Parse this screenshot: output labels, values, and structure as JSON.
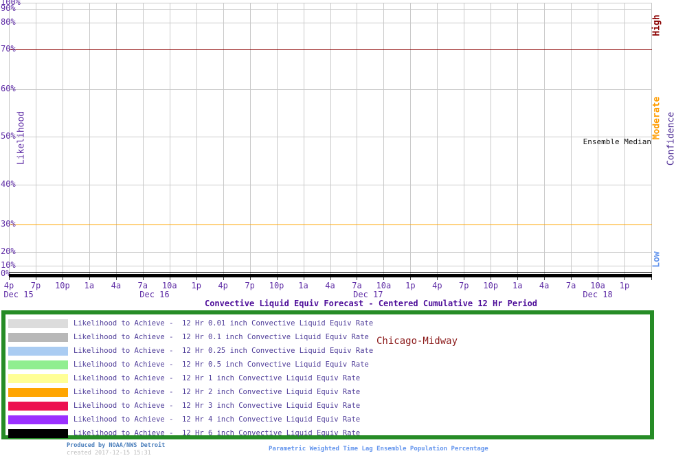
{
  "chart_data": {
    "type": "line",
    "title": "Convective Liquid Equiv Forecast - Centered Cumulative 12 Hr Period",
    "location": "Chicago-Midway",
    "ylabel": "Likelihood",
    "annotation": "Ensemble Median",
    "y_axis": {
      "unit": "%",
      "scale": "cumulative-normal-probability",
      "ticks": [
        100,
        90,
        80,
        70,
        60,
        50,
        40,
        30,
        20,
        10,
        0
      ],
      "ylim": [
        0,
        100
      ],
      "grid": true
    },
    "x_axis": {
      "tick_interval_hours": 3,
      "tick_labels": [
        "4p",
        "7p",
        "10p",
        "1a",
        "4a",
        "7a",
        "10a",
        "1p",
        "4p",
        "7p",
        "10p",
        "1a",
        "4a",
        "7a",
        "10a",
        "1p",
        "4p",
        "7p",
        "10p",
        "1a",
        "4a",
        "7a",
        "10a",
        "1p"
      ],
      "date_labels": [
        {
          "text": "Dec 15",
          "tick_pos": 0.36
        },
        {
          "text": "Dec 16",
          "tick_pos": 5.44
        },
        {
          "text": "Dec 17",
          "tick_pos": 13.42
        },
        {
          "text": "Dec 18",
          "tick_pos": 22.0
        }
      ],
      "grid": true
    },
    "reference_lines": [
      {
        "percent": 70,
        "color": "#8b0000",
        "meaning": "High confidence threshold"
      },
      {
        "percent": 30,
        "color": "#ffa500",
        "meaning": "Moderate confidence threshold"
      }
    ],
    "confidence_axis": {
      "label": "Confidence",
      "label_color": "#4f2e96",
      "bands": [
        {
          "text": "High",
          "color": "#8b0000"
        },
        {
          "text": "Moderate",
          "color": "#ff9c00"
        },
        {
          "text": "Low",
          "color": "#6495ed"
        }
      ]
    },
    "series": [
      {
        "name": "12 Hr 0.01 inch Convective Liquid Equiv Rate",
        "color": "#dcdcdc",
        "constant_value_percent": 0
      },
      {
        "name": "12 Hr 0.1 inch Convective Liquid Equiv Rate",
        "color": "#b8b8b8",
        "constant_value_percent": 0
      },
      {
        "name": "12 Hr 0.25 inch Convective Liquid Equiv Rate",
        "color": "#aaccf2",
        "constant_value_percent": 0
      },
      {
        "name": "12 Hr 0.5 inch Convective Liquid Equiv Rate",
        "color": "#90ee90",
        "constant_value_percent": 0
      },
      {
        "name": "12 Hr 1 inch Convective Liquid Equiv Rate",
        "color": "#ffff96",
        "constant_value_percent": 0
      },
      {
        "name": "12 Hr 2 inch Convective Liquid Equiv Rate",
        "color": "#ffa500",
        "constant_value_percent": 0
      },
      {
        "name": "12 Hr 3 inch Convective Liquid Equiv Rate",
        "color": "#ec1050",
        "constant_value_percent": 0
      },
      {
        "name": "12 Hr 4 inch Convective Liquid Equiv Rate",
        "color": "#9b30ff",
        "constant_value_percent": 0
      },
      {
        "name": "12 Hr 6 inch Convective Liquid Equiv Rate",
        "color": "#000000",
        "constant_value_percent": 0
      }
    ],
    "legend_position": "bottom-box"
  },
  "legend": {
    "border_color": "#268c26",
    "items": [
      {
        "color": "#dcdcdc",
        "label": "Likelihood to Achieve -  12 Hr 0.01 inch Convective Liquid Equiv Rate"
      },
      {
        "color": "#b8b8b8",
        "label": "Likelihood to Achieve -  12 Hr 0.1 inch Convective Liquid Equiv Rate"
      },
      {
        "color": "#aaccf2",
        "label": "Likelihood to Achieve -  12 Hr 0.25 inch Convective Liquid Equiv Rate"
      },
      {
        "color": "#90ee90",
        "label": "Likelihood to Achieve -  12 Hr 0.5 inch Convective Liquid Equiv Rate"
      },
      {
        "color": "#ffff96",
        "label": "Likelihood to Achieve -  12 Hr 1 inch Convective Liquid Equiv Rate"
      },
      {
        "color": "#ffa500",
        "label": "Likelihood to Achieve -  12 Hr 2 inch Convective Liquid Equiv Rate"
      },
      {
        "color": "#ec1050",
        "label": "Likelihood to Achieve -  12 Hr 3 inch Convective Liquid Equiv Rate"
      },
      {
        "color": "#9b30ff",
        "label": "Likelihood to Achieve -  12 Hr 4 inch Convective Liquid Equiv Rate"
      },
      {
        "color": "#000000",
        "label": "Likelihood to Achieve -  12 Hr 6 inch Convective Liquid Equiv Rate"
      }
    ]
  },
  "footer": {
    "produced_by": "Produced by NOAA/NWS Detroit",
    "created": "created 2017-12-15 15:31",
    "method": "Parametric Weighted Time Lag Ensemble Population Percentage"
  }
}
